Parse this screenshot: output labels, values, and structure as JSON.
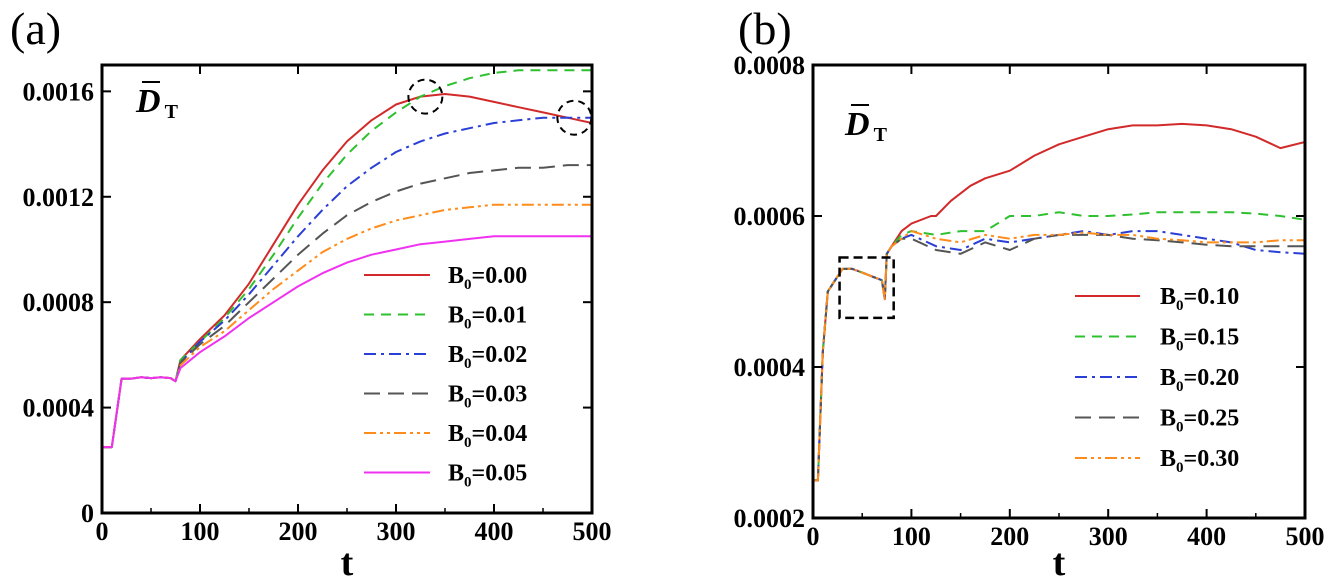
{
  "chart_data": [
    {
      "type": "line",
      "panel_label": "(a)",
      "xlabel": "t",
      "ylabel": "D",
      "ylabel_subscript": "T",
      "xlim": [
        0,
        500
      ],
      "ylim": [
        0,
        0.0017
      ],
      "x_ticks": [
        "0",
        "100",
        "200",
        "300",
        "400",
        "500"
      ],
      "y_ticks": [
        "0",
        "0.0004",
        "0.0008",
        "0.0012",
        "0.0016"
      ],
      "legend_position": "bottom-right",
      "series": [
        {
          "name": "B0=0.00",
          "label_main": "B",
          "label_sub": "0",
          "label_rest": "=0.00",
          "color": "#d22a2a",
          "dash": "solid",
          "x": [
            0,
            10,
            20,
            30,
            40,
            50,
            60,
            70,
            75,
            80,
            100,
            125,
            150,
            175,
            200,
            225,
            250,
            275,
            300,
            325,
            350,
            375,
            400,
            425,
            450,
            475,
            500
          ],
          "y": [
            0.00025,
            0.00025,
            0.00051,
            0.00051,
            0.000515,
            0.000512,
            0.000515,
            0.000512,
            0.0005,
            0.00058,
            0.00066,
            0.00075,
            0.00087,
            0.00102,
            0.00117,
            0.0013,
            0.00141,
            0.00149,
            0.00155,
            0.00158,
            0.00159,
            0.00158,
            0.00156,
            0.00154,
            0.00152,
            0.0015,
            0.00148
          ]
        },
        {
          "name": "B0=0.01",
          "label_main": "B",
          "label_sub": "0",
          "label_rest": "=0.01",
          "color": "#2fc02f",
          "dash": "dashed",
          "x": [
            0,
            10,
            20,
            30,
            40,
            50,
            60,
            70,
            75,
            80,
            100,
            125,
            150,
            175,
            200,
            225,
            250,
            275,
            300,
            325,
            350,
            375,
            400,
            425,
            450,
            475,
            500
          ],
          "y": [
            0.00025,
            0.00025,
            0.00051,
            0.00051,
            0.000515,
            0.000512,
            0.000515,
            0.000512,
            0.0005,
            0.00058,
            0.00065,
            0.00074,
            0.00085,
            0.00098,
            0.00112,
            0.00125,
            0.00136,
            0.00145,
            0.00152,
            0.00158,
            0.00162,
            0.00165,
            0.00167,
            0.00168,
            0.00168,
            0.00168,
            0.00168
          ]
        },
        {
          "name": "B0=0.02",
          "label_main": "B",
          "label_sub": "0",
          "label_rest": "=0.02",
          "color": "#2a3fd6",
          "dash": "dashdot",
          "x": [
            0,
            10,
            20,
            30,
            40,
            50,
            60,
            70,
            75,
            80,
            100,
            125,
            150,
            175,
            200,
            225,
            250,
            275,
            300,
            325,
            350,
            375,
            400,
            425,
            450,
            475,
            500
          ],
          "y": [
            0.00025,
            0.00025,
            0.00051,
            0.00051,
            0.000515,
            0.000512,
            0.000515,
            0.000512,
            0.0005,
            0.00057,
            0.00065,
            0.00073,
            0.00083,
            0.00094,
            0.00105,
            0.00115,
            0.00124,
            0.00131,
            0.00137,
            0.00141,
            0.00144,
            0.00146,
            0.00148,
            0.00149,
            0.0015,
            0.0015,
            0.0015
          ]
        },
        {
          "name": "B0=0.03",
          "label_main": "B",
          "label_sub": "0",
          "label_rest": "=0.03",
          "color": "#555555",
          "dash": "longdash",
          "x": [
            0,
            10,
            20,
            30,
            40,
            50,
            60,
            70,
            75,
            80,
            100,
            125,
            150,
            175,
            200,
            225,
            250,
            275,
            300,
            325,
            350,
            375,
            400,
            425,
            450,
            475,
            500
          ],
          "y": [
            0.00025,
            0.00025,
            0.00051,
            0.00051,
            0.000515,
            0.000512,
            0.000515,
            0.000512,
            0.0005,
            0.00057,
            0.00064,
            0.00071,
            0.0008,
            0.00089,
            0.00098,
            0.00106,
            0.00113,
            0.00118,
            0.00122,
            0.00125,
            0.00127,
            0.00129,
            0.0013,
            0.00131,
            0.00131,
            0.00132,
            0.00132
          ]
        },
        {
          "name": "B0=0.04",
          "label_main": "B",
          "label_sub": "0",
          "label_rest": "=0.04",
          "color": "#ff8c1a",
          "dash": "dashdotdot",
          "x": [
            0,
            10,
            20,
            30,
            40,
            50,
            60,
            70,
            75,
            80,
            100,
            125,
            150,
            175,
            200,
            225,
            250,
            275,
            300,
            325,
            350,
            375,
            400,
            425,
            450,
            475,
            500
          ],
          "y": [
            0.00025,
            0.00025,
            0.00051,
            0.00051,
            0.000515,
            0.000512,
            0.000515,
            0.000512,
            0.0005,
            0.00056,
            0.00063,
            0.00069,
            0.00077,
            0.00085,
            0.00092,
            0.00099,
            0.00104,
            0.00108,
            0.00111,
            0.00113,
            0.00115,
            0.00116,
            0.00117,
            0.00117,
            0.00117,
            0.00117,
            0.00117
          ]
        },
        {
          "name": "B0=0.05",
          "label_main": "B",
          "label_sub": "0",
          "label_rest": "=0.05",
          "color": "#f032f0",
          "dash": "solid",
          "x": [
            0,
            10,
            20,
            30,
            40,
            50,
            60,
            70,
            75,
            80,
            100,
            125,
            150,
            175,
            200,
            225,
            250,
            275,
            300,
            325,
            350,
            375,
            400,
            425,
            450,
            475,
            500
          ],
          "y": [
            0.00025,
            0.00025,
            0.00051,
            0.00051,
            0.000515,
            0.000512,
            0.000515,
            0.000512,
            0.0005,
            0.00055,
            0.00061,
            0.00067,
            0.00074,
            0.0008,
            0.00086,
            0.00091,
            0.00095,
            0.00098,
            0.001,
            0.00102,
            0.00103,
            0.00104,
            0.00105,
            0.00105,
            0.00105,
            0.00105,
            0.00105
          ]
        }
      ],
      "annotations": [
        {
          "shape": "dashed-circle",
          "x": 330,
          "y": 0.00158
        },
        {
          "shape": "dashed-circle",
          "x": 482,
          "y": 0.0015
        }
      ]
    },
    {
      "type": "line",
      "panel_label": "(b)",
      "xlabel": "t",
      "ylabel": "D",
      "ylabel_subscript": "T",
      "xlim": [
        0,
        500
      ],
      "ylim": [
        0.0002,
        0.0008
      ],
      "x_ticks": [
        "0",
        "100",
        "200",
        "300",
        "400",
        "500"
      ],
      "y_ticks": [
        "0.0002",
        "0.0004",
        "0.0006",
        "0.0008"
      ],
      "legend_position": "bottom-right",
      "series": [
        {
          "name": "B0=0.10",
          "label_main": "B",
          "label_sub": "0",
          "label_rest": "=0.10",
          "color": "#d22a2a",
          "dash": "solid",
          "x": [
            0,
            5,
            10,
            15,
            20,
            25,
            30,
            40,
            50,
            60,
            70,
            73,
            75,
            80,
            90,
            100,
            120,
            125,
            140,
            160,
            175,
            200,
            225,
            250,
            275,
            300,
            325,
            350,
            375,
            400,
            425,
            450,
            475,
            500
          ],
          "y": [
            0.00025,
            0.00025,
            0.00042,
            0.0005,
            0.00051,
            0.00052,
            0.00053,
            0.00053,
            0.000525,
            0.00052,
            0.000515,
            0.00049,
            0.00055,
            0.00056,
            0.00058,
            0.00059,
            0.0006,
            0.0006,
            0.00062,
            0.00064,
            0.00065,
            0.00066,
            0.00068,
            0.000695,
            0.000705,
            0.000715,
            0.00072,
            0.00072,
            0.000722,
            0.00072,
            0.000715,
            0.000705,
            0.00069,
            0.000698
          ]
        },
        {
          "name": "B0=0.15",
          "label_main": "B",
          "label_sub": "0",
          "label_rest": "=0.15",
          "color": "#2fc02f",
          "dash": "dashed",
          "x": [
            0,
            5,
            10,
            15,
            20,
            25,
            30,
            40,
            50,
            60,
            70,
            73,
            75,
            80,
            90,
            100,
            125,
            150,
            175,
            200,
            225,
            250,
            275,
            300,
            325,
            350,
            375,
            400,
            425,
            450,
            475,
            500
          ],
          "y": [
            0.00025,
            0.00025,
            0.00042,
            0.0005,
            0.00051,
            0.00052,
            0.00053,
            0.00053,
            0.000525,
            0.00052,
            0.000515,
            0.00049,
            0.00055,
            0.00056,
            0.000575,
            0.00058,
            0.000575,
            0.00058,
            0.00058,
            0.0006,
            0.0006,
            0.000605,
            0.0006,
            0.0006,
            0.000602,
            0.000605,
            0.000605,
            0.000605,
            0.000605,
            0.000603,
            0.0006,
            0.000595
          ]
        },
        {
          "name": "B0=0.20",
          "label_main": "B",
          "label_sub": "0",
          "label_rest": "=0.20",
          "color": "#2a3fd6",
          "dash": "dashdot",
          "x": [
            0,
            5,
            10,
            15,
            20,
            25,
            30,
            40,
            50,
            60,
            70,
            73,
            75,
            80,
            90,
            100,
            125,
            150,
            175,
            200,
            225,
            250,
            275,
            300,
            325,
            350,
            375,
            400,
            425,
            450,
            475,
            500
          ],
          "y": [
            0.00025,
            0.00025,
            0.00042,
            0.0005,
            0.00051,
            0.00052,
            0.00053,
            0.00053,
            0.000525,
            0.00052,
            0.000515,
            0.00049,
            0.00055,
            0.00056,
            0.00057,
            0.000575,
            0.00056,
            0.000555,
            0.00057,
            0.000565,
            0.00057,
            0.000575,
            0.00058,
            0.000575,
            0.00058,
            0.00058,
            0.000575,
            0.00057,
            0.000565,
            0.000555,
            0.000552,
            0.00055
          ]
        },
        {
          "name": "B0=0.25",
          "label_main": "B",
          "label_sub": "0",
          "label_rest": "=0.25",
          "color": "#555555",
          "dash": "longdash",
          "x": [
            0,
            5,
            10,
            15,
            20,
            25,
            30,
            40,
            50,
            60,
            70,
            73,
            75,
            80,
            90,
            100,
            125,
            150,
            175,
            200,
            225,
            250,
            275,
            300,
            325,
            350,
            375,
            400,
            425,
            450,
            475,
            500
          ],
          "y": [
            0.00025,
            0.00025,
            0.00042,
            0.0005,
            0.00051,
            0.00052,
            0.00053,
            0.00053,
            0.000525,
            0.00052,
            0.000515,
            0.00049,
            0.00055,
            0.00056,
            0.00057,
            0.00057,
            0.000555,
            0.00055,
            0.000565,
            0.000555,
            0.00057,
            0.000575,
            0.000575,
            0.000575,
            0.00057,
            0.000568,
            0.000565,
            0.000562,
            0.00056,
            0.00056,
            0.00056,
            0.00056
          ]
        },
        {
          "name": "B0=0.30",
          "label_main": "B",
          "label_sub": "0",
          "label_rest": "=0.30",
          "color": "#ff8c1a",
          "dash": "dashdotdot",
          "x": [
            0,
            5,
            10,
            15,
            20,
            25,
            30,
            40,
            50,
            60,
            70,
            73,
            75,
            80,
            90,
            100,
            125,
            150,
            175,
            200,
            225,
            250,
            275,
            300,
            325,
            350,
            375,
            400,
            425,
            450,
            475,
            500
          ],
          "y": [
            0.00025,
            0.00025,
            0.00042,
            0.0005,
            0.00051,
            0.00052,
            0.00053,
            0.00053,
            0.000525,
            0.00052,
            0.000515,
            0.00049,
            0.00055,
            0.00056,
            0.00057,
            0.00058,
            0.00057,
            0.000565,
            0.000575,
            0.00057,
            0.000575,
            0.000575,
            0.000578,
            0.000575,
            0.000575,
            0.00057,
            0.000568,
            0.000565,
            0.000565,
            0.000565,
            0.000568,
            0.000568
          ]
        }
      ],
      "annotations": [
        {
          "shape": "dashed-rectangle",
          "x_range": [
            27,
            82
          ],
          "y_range": [
            0.000465,
            0.000545
          ]
        }
      ]
    }
  ]
}
